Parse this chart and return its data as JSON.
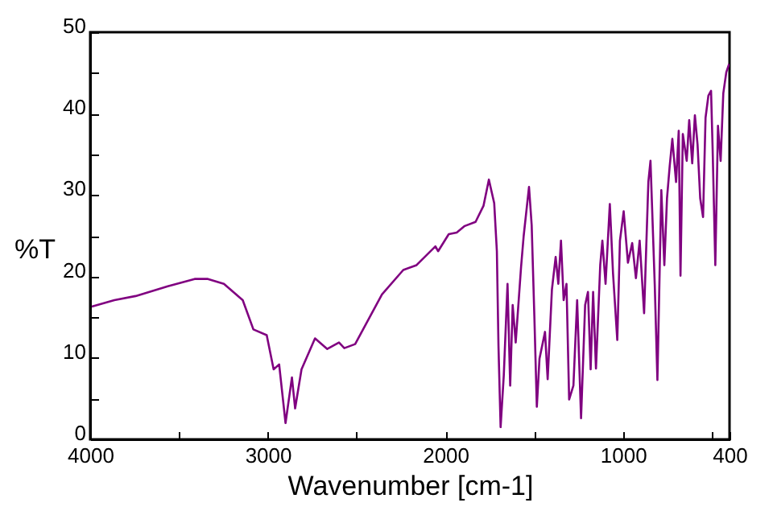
{
  "chart_data": {
    "type": "line",
    "xlabel": "Wavenumber [cm-1]",
    "ylabel": "%T",
    "xlim": [
      4000,
      400
    ],
    "ylim": [
      0,
      50
    ],
    "xticks": [
      4000,
      {
        "value": 3500,
        "label": null
      },
      3000,
      {
        "value": 2500,
        "label": null
      },
      2000,
      {
        "value": 1500,
        "label": null
      },
      1000,
      {
        "value": 500,
        "label": null
      },
      400
    ],
    "yticks": [
      0,
      {
        "value": 5,
        "label": null
      },
      10,
      {
        "value": 15,
        "label": null
      },
      20,
      {
        "value": 25,
        "label": null
      },
      30,
      {
        "value": 35,
        "label": null
      },
      40,
      {
        "value": 45,
        "label": null
      },
      50
    ],
    "grid": false,
    "series": [
      {
        "color": "#800080",
        "x": [
          3991,
          3864,
          3744,
          3563,
          3412,
          3337,
          3247,
          3141,
          3081,
          3006,
          2967,
          2936,
          2900,
          2864,
          2846,
          2810,
          2734,
          2665,
          2599,
          2569,
          2508,
          2357,
          2237,
          2162,
          2056,
          2041,
          1981,
          1936,
          1891,
          1830,
          1785,
          1755,
          1725,
          1710,
          1701,
          1689,
          1671,
          1650,
          1635,
          1621,
          1604,
          1574,
          1559,
          1529,
          1514,
          1499,
          1485,
          1470,
          1439,
          1424,
          1400,
          1379,
          1364,
          1349,
          1334,
          1318,
          1303,
          1279,
          1258,
          1236,
          1213,
          1197,
          1182,
          1168,
          1152,
          1128,
          1116,
          1098,
          1074,
          1056,
          1032,
          1017,
          996,
          972,
          948,
          927,
          906,
          881,
          857,
          845,
          821,
          806,
          784,
          767,
          752,
          737,
          722,
          701,
          686,
          676,
          663,
          641,
          627,
          610,
          595,
          580,
          565,
          549,
          535,
          519,
          504,
          495,
          480,
          465,
          450,
          435,
          418,
          402
        ],
        "values": [
          16.3,
          17.1,
          17.6,
          18.8,
          19.7,
          19.7,
          19.1,
          17.1,
          13.5,
          12.8,
          8.6,
          9.2,
          2.0,
          7.6,
          3.8,
          8.6,
          12.4,
          11.1,
          11.9,
          11.2,
          11.7,
          17.8,
          20.8,
          21.4,
          23.7,
          23.1,
          25.2,
          25.4,
          26.2,
          26.7,
          28.7,
          31.9,
          29.0,
          23.1,
          11.5,
          1.5,
          7.9,
          19.1,
          6.6,
          16.5,
          11.9,
          21.1,
          25.0,
          31.0,
          26.3,
          15.2,
          4.0,
          9.9,
          13.2,
          7.4,
          18.4,
          22.4,
          19.1,
          24.4,
          17.1,
          19.1,
          4.9,
          6.6,
          17.1,
          2.6,
          16.5,
          18.1,
          8.6,
          18.1,
          8.7,
          21.4,
          24.4,
          19.1,
          28.9,
          20.4,
          12.2,
          24.4,
          28.0,
          21.7,
          24.1,
          19.8,
          24.4,
          15.5,
          31.6,
          34.2,
          19.0,
          7.3,
          30.6,
          21.4,
          29.6,
          33.5,
          36.9,
          31.6,
          37.9,
          20.1,
          37.5,
          34.2,
          39.2,
          33.9,
          39.8,
          36.2,
          29.6,
          27.3,
          39.5,
          42.2,
          42.8,
          35.6,
          21.4,
          38.5,
          34.2,
          42.5,
          45.1,
          46.1
        ]
      }
    ]
  }
}
